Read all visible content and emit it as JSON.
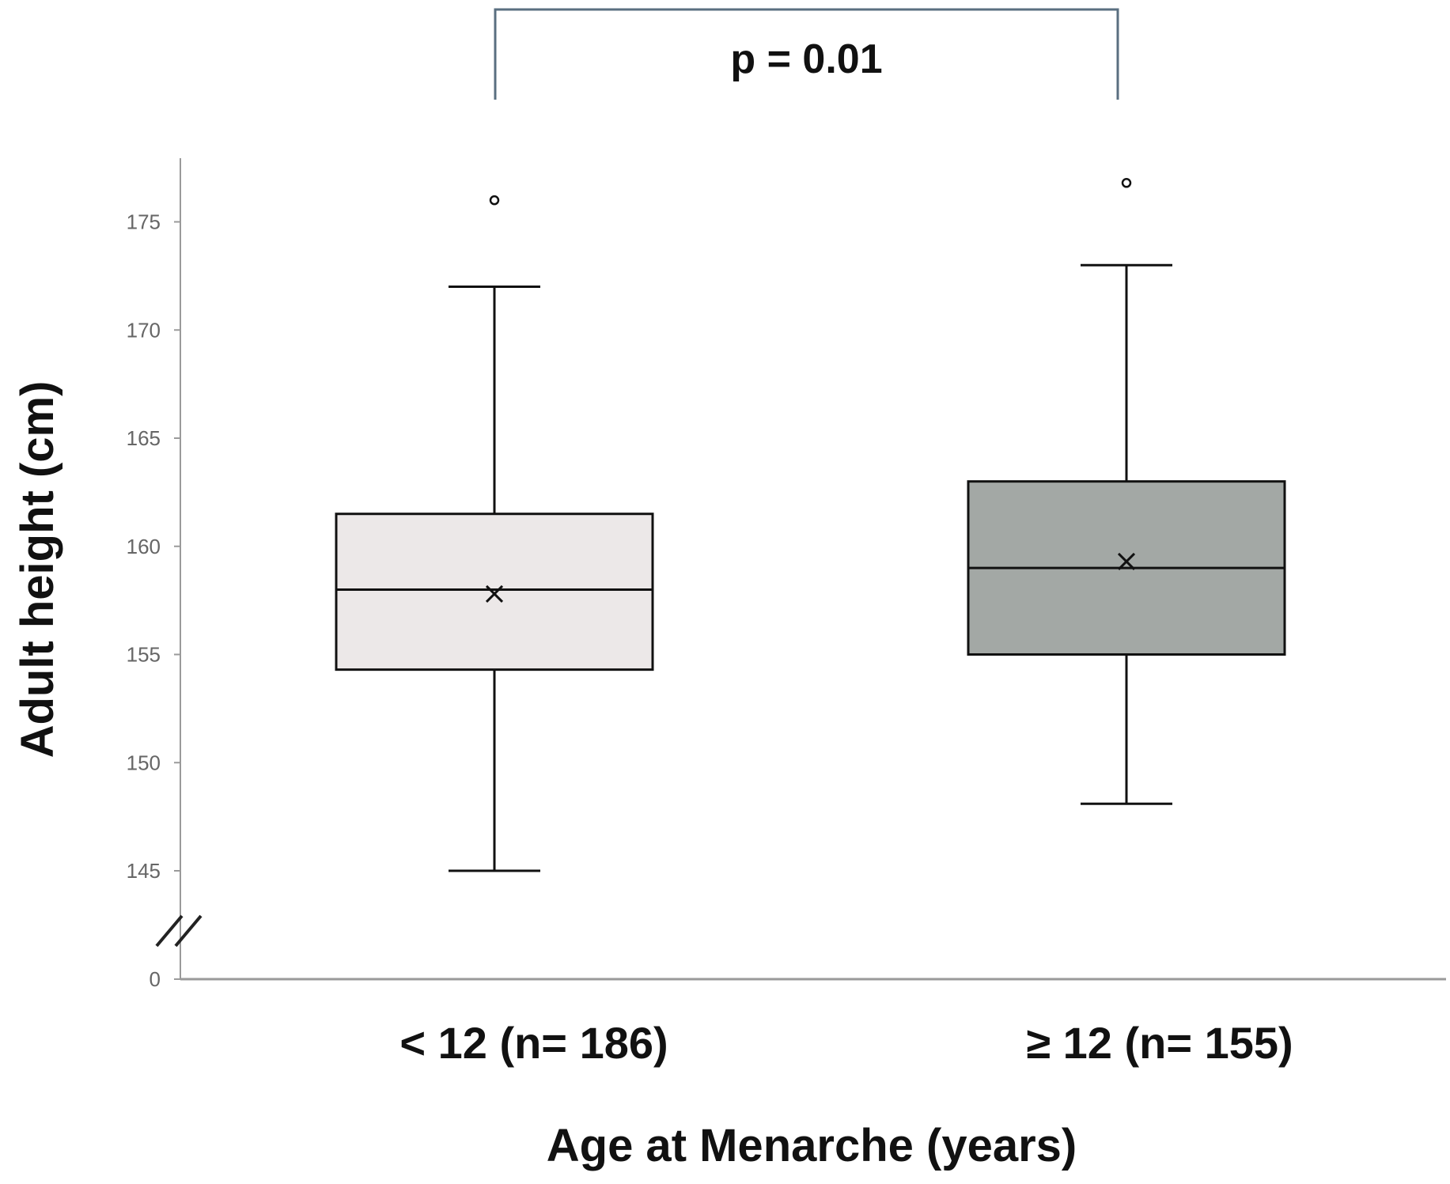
{
  "chart_data": {
    "type": "boxplot",
    "title": "",
    "xlabel": "Age at Menarche (years)",
    "ylabel": "Adult height (cm)",
    "y_axis_break": true,
    "ylim": [
      145,
      178
    ],
    "y_ticks": [
      0,
      145,
      150,
      155,
      160,
      165,
      170,
      175
    ],
    "grid": false,
    "categories": [
      "< 12 (n= 186)",
      "≥ 12 (n= 155)"
    ],
    "boxes": [
      {
        "category": "< 12 (n= 186)",
        "whisker_low": 145.0,
        "q1": 154.3,
        "median": 158.0,
        "q3": 161.5,
        "whisker_high": 172.0,
        "mean": 157.8,
        "outliers": [
          176.0
        ],
        "color": "#ece8e8"
      },
      {
        "category": "≥ 12 (n= 155)",
        "whisker_low": 148.1,
        "q1": 155.0,
        "median": 159.0,
        "q3": 163.0,
        "whisker_high": 173.0,
        "mean": 159.3,
        "outliers": [
          176.8
        ],
        "color": "#a3a8a5"
      }
    ],
    "annotation": {
      "text": "p = 0.01",
      "between": [
        "< 12 (n= 186)",
        "≥ 12 (n= 155)"
      ]
    }
  }
}
